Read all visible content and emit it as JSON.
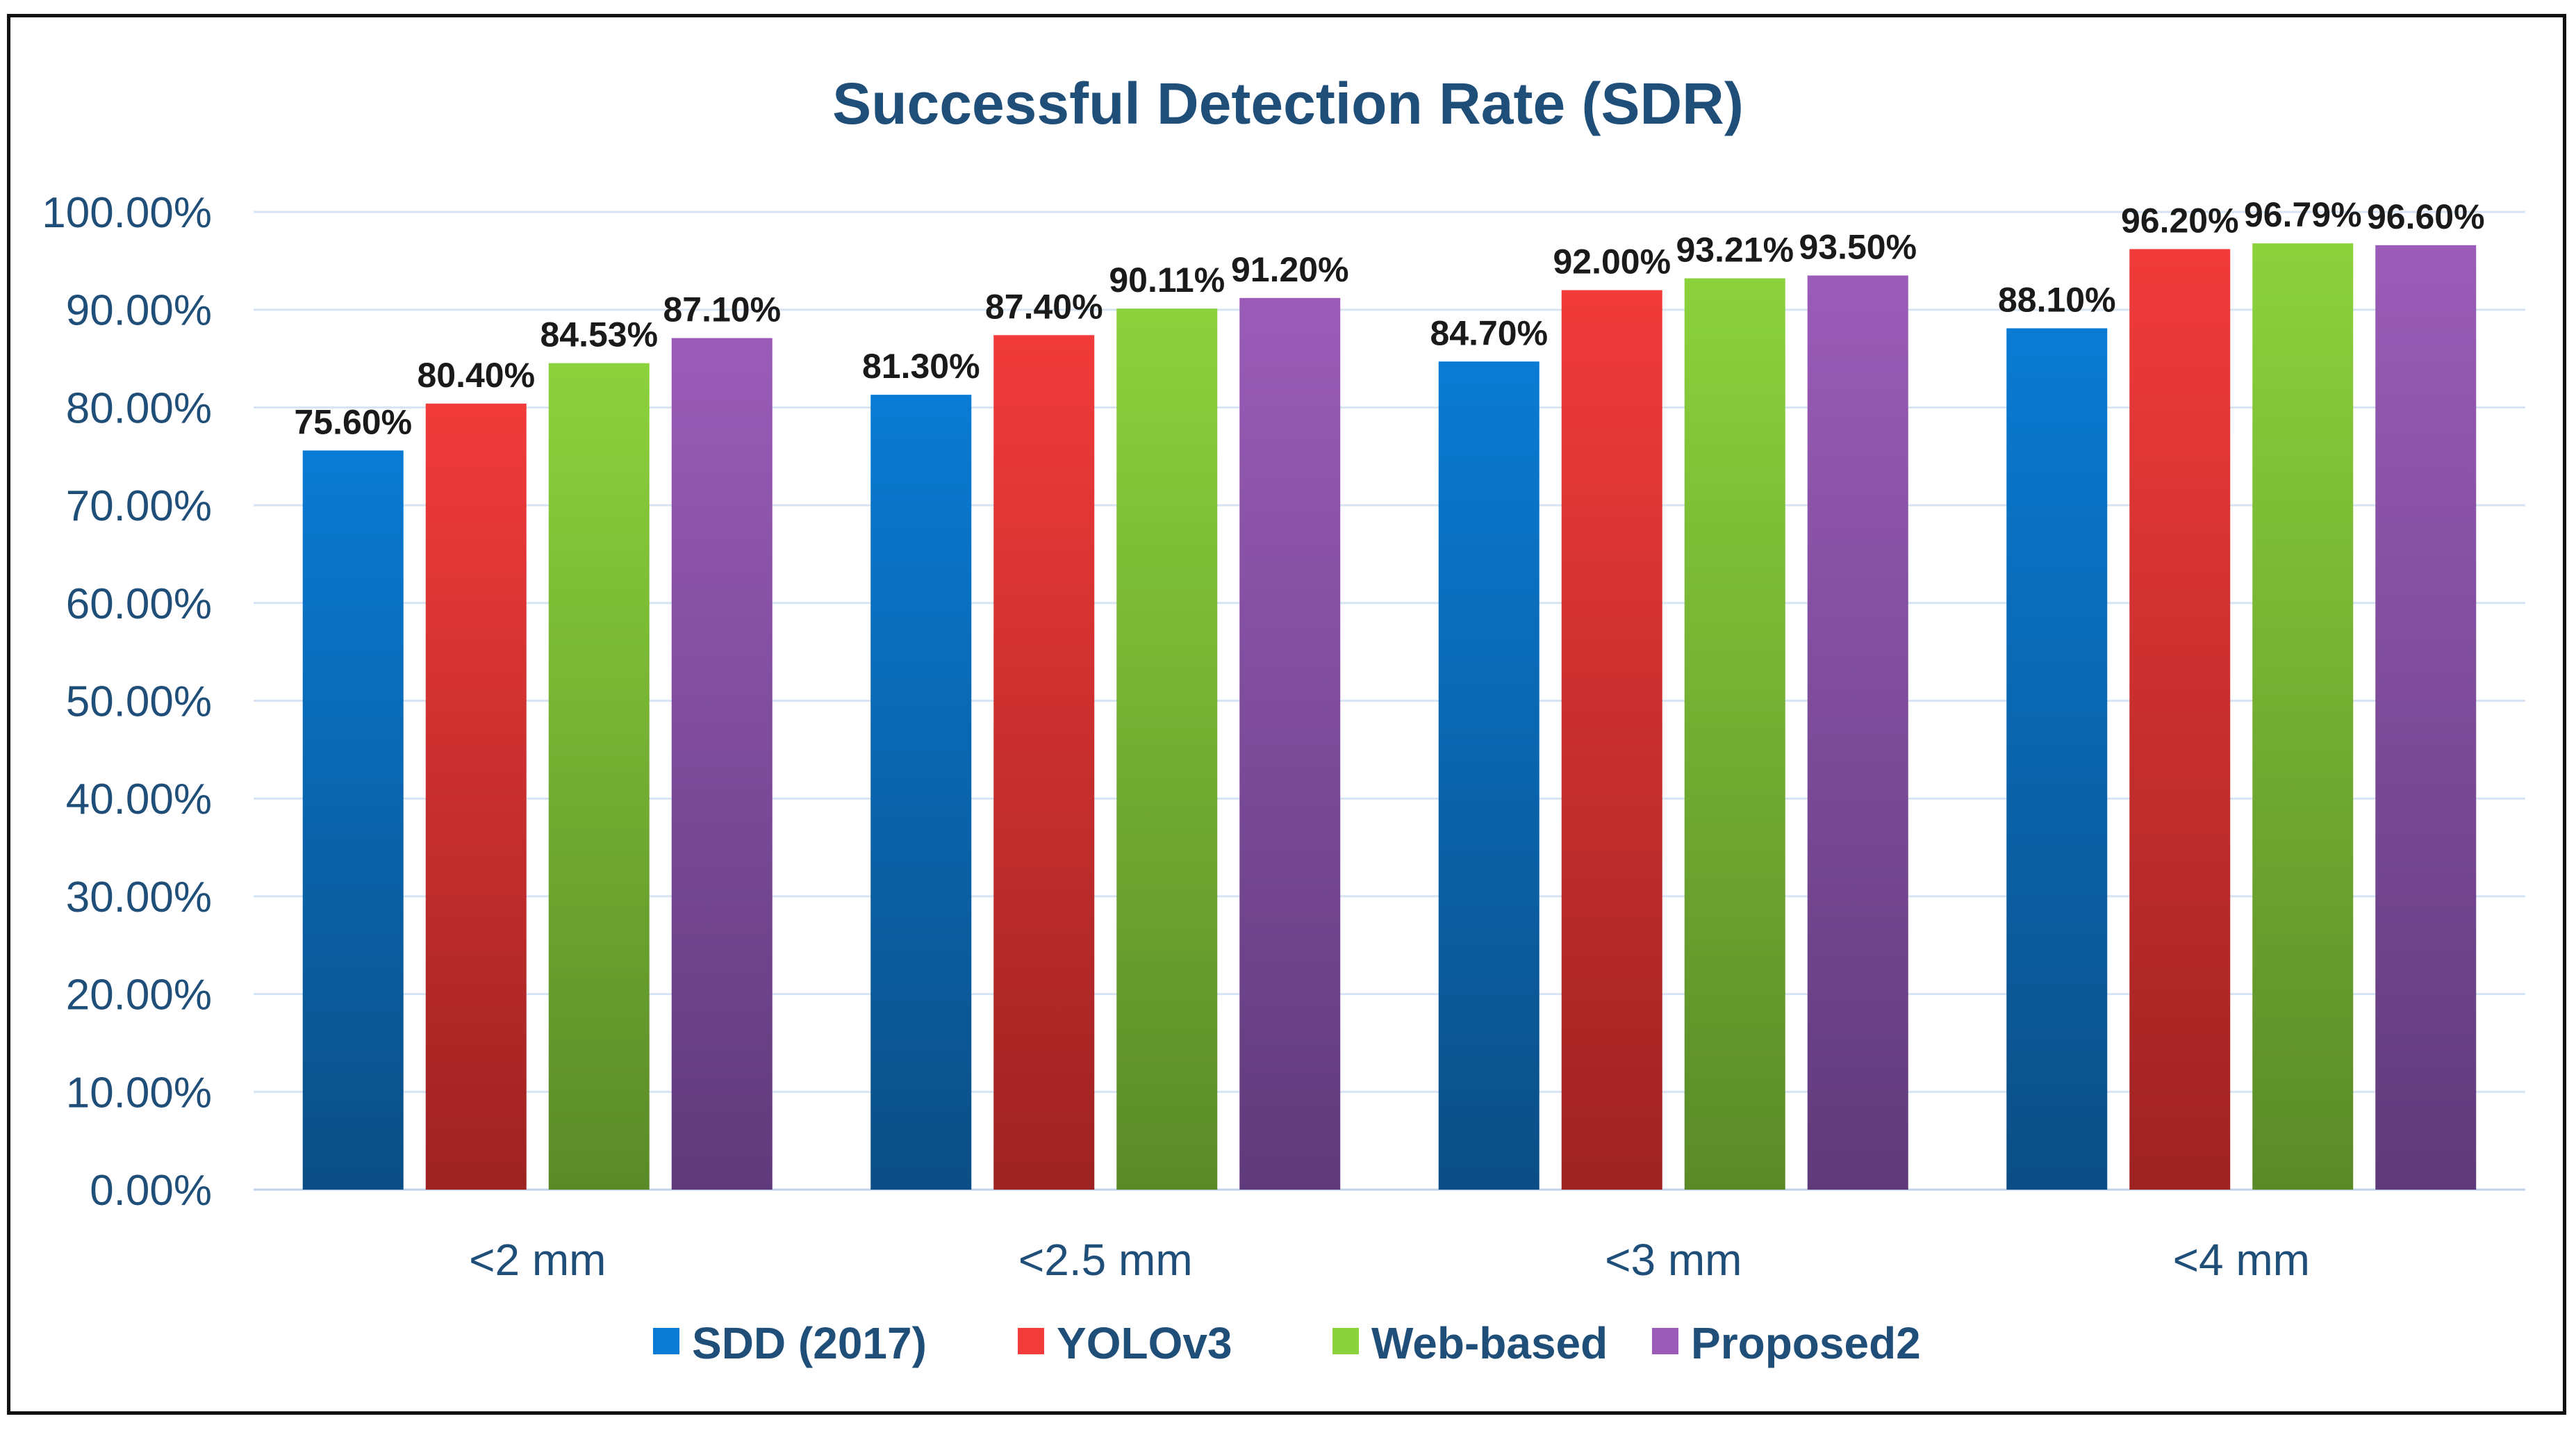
{
  "chart_data": {
    "type": "bar",
    "title": "Successful Detection Rate (SDR)",
    "xlabel": "",
    "ylabel": "",
    "categories": [
      "<2 mm",
      "<2.5 mm",
      "<3 mm",
      "<4 mm"
    ],
    "series": [
      {
        "name": "SDD (2017)",
        "values": [
          75.6,
          81.3,
          84.7,
          88.1
        ],
        "labels": [
          "75.60%",
          "81.30%",
          "84.70%",
          "88.10%"
        ],
        "color": "#0A7BD4",
        "color_dark": "#0B4E85"
      },
      {
        "name": "YOLOv3",
        "values": [
          80.4,
          87.4,
          92.0,
          96.2
        ],
        "labels": [
          "80.40%",
          "87.40%",
          "92.00%",
          "96.20%"
        ],
        "color": "#F23B3B",
        "color_dark": "#9E2222"
      },
      {
        "name": "Web-based",
        "values": [
          84.53,
          90.11,
          93.21,
          96.79
        ],
        "labels": [
          "84.53%",
          "90.11%",
          "93.21%",
          "96.79%"
        ],
        "color": "#8CD23C",
        "color_dark": "#5A8A28"
      },
      {
        "name": "Proposed2",
        "values": [
          87.1,
          91.2,
          93.5,
          96.6
        ],
        "labels": [
          "87.10%",
          "91.20%",
          "93.50%",
          "96.60%"
        ],
        "color": "#9A5CB8",
        "color_dark": "#5F3A7A"
      }
    ],
    "ylim": [
      0,
      100
    ],
    "yticks": [
      0,
      10,
      20,
      30,
      40,
      50,
      60,
      70,
      80,
      90,
      100
    ],
    "ytick_labels": [
      "0.00%",
      "10.00%",
      "20.00%",
      "30.00%",
      "40.00%",
      "50.00%",
      "60.00%",
      "70.00%",
      "80.00%",
      "90.00%",
      "100.00%"
    ],
    "grid": true,
    "legend_position": "bottom",
    "title_color": "#1F4E79",
    "axis_text_color": "#1F4E79",
    "grid_color": "#D6E4F3"
  }
}
